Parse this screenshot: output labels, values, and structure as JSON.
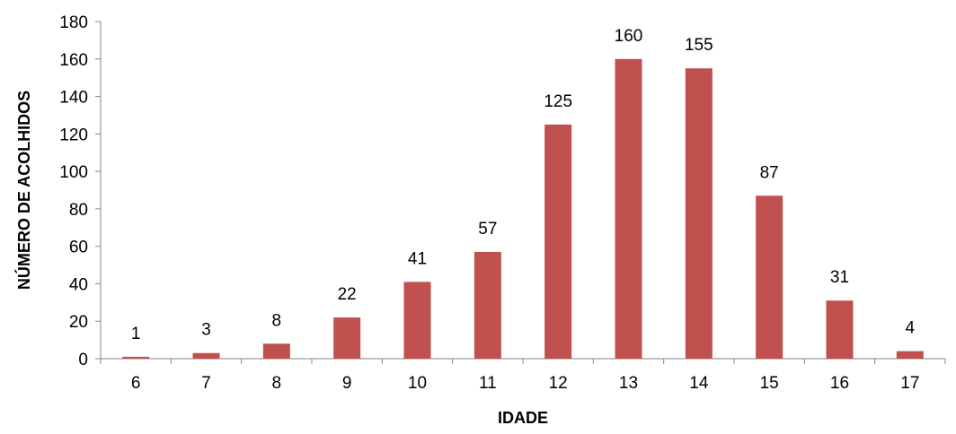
{
  "chart_data": {
    "type": "bar",
    "title": "",
    "xlabel": "IDADE",
    "ylabel": "NÚMERO DE ACOLHIDOS",
    "categories": [
      "6",
      "7",
      "8",
      "9",
      "10",
      "11",
      "12",
      "13",
      "14",
      "15",
      "16",
      "17"
    ],
    "values": [
      1,
      3,
      8,
      22,
      41,
      57,
      125,
      160,
      155,
      87,
      31,
      4
    ],
    "ylim": [
      0,
      180
    ],
    "yticks": [
      0,
      20,
      40,
      60,
      80,
      100,
      120,
      140,
      160,
      180
    ],
    "grid": false,
    "legend": "none",
    "data_labels": true,
    "bar_color": "#C0504D",
    "axis_color": "#868686"
  }
}
